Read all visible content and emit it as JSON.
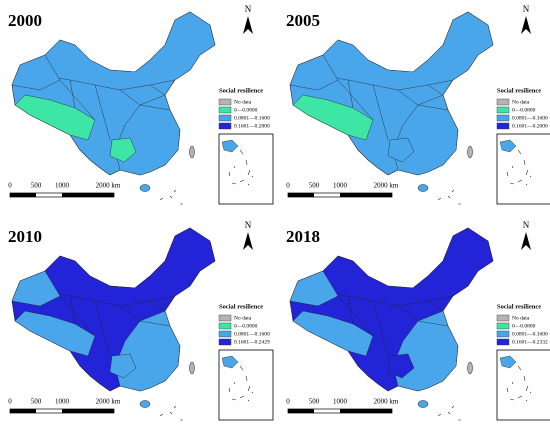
{
  "north": "N",
  "legend_title": "Social resilience",
  "colors": [
    "#b4b4b4",
    "#3de6a4",
    "#4aa6ea",
    "#2323d8"
  ],
  "scale": [
    "0",
    "500",
    "1000",
    "2000 km"
  ],
  "panels": [
    {
      "year": "2000",
      "legend": [
        "No data",
        "0—0.0800",
        "0.0801—0.1600",
        "0.1601—0.2000"
      ]
    },
    {
      "year": "2005",
      "legend": [
        "No data",
        "0—0.0800",
        "0.0801—0.1600",
        "0.1601—0.2000"
      ]
    },
    {
      "year": "2010",
      "legend": [
        "No data",
        "0—0.0800",
        "0.0801—0.1600",
        "0.1601—0.2429"
      ]
    },
    {
      "year": "2018",
      "legend": [
        "No data",
        "0—0.0800",
        "0.0801—0.1600",
        "0.1601—0.2332"
      ]
    }
  ]
}
